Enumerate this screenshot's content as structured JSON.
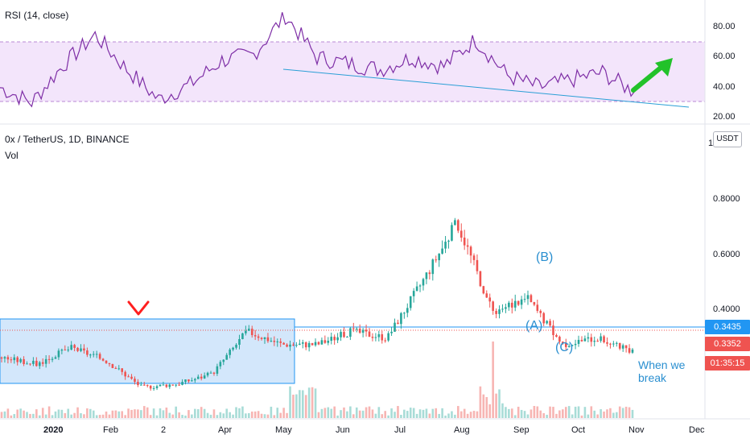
{
  "rsi_panel": {
    "title": "RSI (14, close)",
    "y_ticks": [
      "80.00",
      "60.00",
      "40.00",
      "20.00"
    ]
  },
  "main_panel": {
    "symbol": "0x / TetherUS, 1D, BINANCE",
    "volume_label": "Vol",
    "currency_button": "USDT",
    "y_ticks": [
      "0.8000",
      "0.6000",
      "0.4000"
    ],
    "top_tick": "1",
    "price_tags": [
      {
        "value": "0.3435",
        "color": "#2196f3"
      },
      {
        "value": "0.3352",
        "color": "#ef5350"
      },
      {
        "value": "01:35:15",
        "color": "#ef5350"
      }
    ],
    "annotations": {
      "wave_a": "(A)",
      "wave_b": "(B)",
      "wave_c": "(C)",
      "note": "When we break"
    }
  },
  "time_axis": [
    "2020",
    "Feb",
    "2",
    "Apr",
    "May",
    "Jun",
    "Jul",
    "Aug",
    "Sep",
    "Oct",
    "Nov",
    "Dec"
  ],
  "colors": {
    "up": "#26a69a",
    "down": "#ef5350",
    "rsi_line": "#7e2ea6",
    "rsi_band": "#f3e5fb",
    "trendline": "#2a9fd6",
    "range_box": "#d3e7fb",
    "arrow_green": "#22c22a",
    "marker_red": "#ff1f1f"
  },
  "chart_data": [
    {
      "type": "line",
      "title": "RSI (14, close)",
      "ylim": [
        20,
        92
      ],
      "y_ticks": [
        80,
        60,
        40,
        20
      ],
      "band": [
        30,
        70
      ],
      "x": [
        "2020-01",
        "2020-01-15",
        "2020-02",
        "2020-02-15",
        "2020-03",
        "2020-03-15",
        "2020-04",
        "2020-04-15",
        "2020-05",
        "2020-05-15",
        "2020-06",
        "2020-06-15",
        "2020-07",
        "2020-07-15",
        "2020-08",
        "2020-08-15",
        "2020-09",
        "2020-09-15",
        "2020-10",
        "2020-10-15",
        "2020-10-28"
      ],
      "values": [
        40,
        30,
        55,
        75,
        52,
        32,
        42,
        58,
        62,
        88,
        60,
        56,
        52,
        60,
        54,
        72,
        48,
        40,
        45,
        50,
        37
      ]
    },
    {
      "type": "candlestick",
      "title": "0x / TetherUS, 1D, BINANCE",
      "ylim": [
        0.2,
        1.0
      ],
      "y_ticks": [
        0.8,
        0.6,
        0.4
      ],
      "x": [
        "2020-01",
        "2020-02",
        "2020-02-15",
        "2020-03",
        "2020-03-15",
        "2020-04",
        "2020-05",
        "2020-05-10",
        "2020-06",
        "2020-07",
        "2020-07-15",
        "2020-08",
        "2020-08-15",
        "2020-08-20",
        "2020-09",
        "2020-09-10",
        "2020-10",
        "2020-10-15",
        "2020-10-28"
      ],
      "values": [
        0.32,
        0.3,
        0.35,
        0.31,
        0.23,
        0.24,
        0.27,
        0.4,
        0.36,
        0.36,
        0.4,
        0.38,
        0.55,
        0.73,
        0.46,
        0.5,
        0.36,
        0.38,
        0.3352
      ],
      "last_price": 0.3352,
      "horizontal_line": 0.3435
    }
  ]
}
